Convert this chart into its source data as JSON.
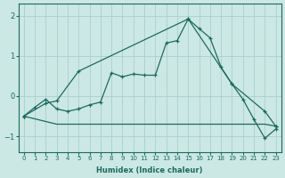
{
  "xlabel": "Humidex (Indice chaleur)",
  "background_color": "#cce8e4",
  "grid_color": "#aacfcb",
  "line_color": "#1a6b60",
  "xlim": [
    -0.5,
    23.5
  ],
  "ylim": [
    -1.4,
    2.3
  ],
  "yticks": [
    -1,
    0,
    1,
    2
  ],
  "xticks": [
    0,
    1,
    2,
    3,
    4,
    5,
    6,
    7,
    8,
    9,
    10,
    11,
    12,
    13,
    14,
    15,
    16,
    17,
    18,
    19,
    20,
    21,
    22,
    23
  ],
  "mean_x": [
    0,
    1,
    2,
    3,
    4,
    5,
    6,
    7,
    8,
    9,
    10,
    11,
    12,
    13,
    14,
    15,
    16,
    17,
    18,
    19,
    20,
    21,
    22,
    23
  ],
  "mean_y": [
    -0.5,
    -0.28,
    -0.08,
    -0.32,
    -0.38,
    -0.32,
    -0.22,
    -0.15,
    0.58,
    0.48,
    0.55,
    0.52,
    0.52,
    1.32,
    1.38,
    1.92,
    1.68,
    1.45,
    0.72,
    0.3,
    -0.08,
    -0.58,
    -1.05,
    -0.82
  ],
  "upper_x": [
    0,
    2,
    3,
    5,
    15,
    19,
    22,
    23
  ],
  "upper_y": [
    -0.5,
    -0.18,
    -0.12,
    0.62,
    1.92,
    0.3,
    -0.38,
    -0.75
  ],
  "lower_x": [
    0,
    3,
    5,
    15,
    22,
    23
  ],
  "lower_y": [
    -0.5,
    -0.7,
    -0.7,
    -0.7,
    -0.7,
    -0.75
  ]
}
